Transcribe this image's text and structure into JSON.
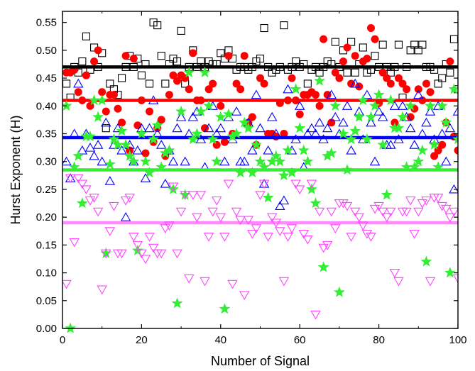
{
  "chart_data": {
    "type": "scatter",
    "title": "",
    "xlabel": "Number of Signal",
    "ylabel": "Hurst Exponent (H)",
    "xlim": [
      0,
      100
    ],
    "ylim": [
      0.0,
      0.57
    ],
    "x_ticks": [
      0,
      20,
      40,
      60,
      80,
      100
    ],
    "x_tick_labels": [
      "0",
      "20",
      "40",
      "60",
      "80",
      "100"
    ],
    "y_ticks": [
      0.0,
      0.05,
      0.1,
      0.15,
      0.2,
      0.25,
      0.3,
      0.35,
      0.4,
      0.45,
      0.5,
      0.55
    ],
    "y_tick_labels": [
      "0.00",
      "0.05",
      "0.10",
      "0.15",
      "0.20",
      "0.25",
      "0.30",
      "0.35",
      "0.40",
      "0.45",
      "0.50",
      "0.55"
    ],
    "grid": false,
    "legend": "none",
    "horizontal_lines": [
      {
        "y": 0.47,
        "color": "#000000"
      },
      {
        "y": 0.41,
        "color": "#ff0000"
      },
      {
        "y": 0.343,
        "color": "#0000ff"
      },
      {
        "y": 0.285,
        "color": "#33ee33"
      },
      {
        "y": 0.19,
        "color": "#ff88ff"
      }
    ],
    "series": [
      {
        "marker": "open-square",
        "color": "#000000",
        "x": [
          1,
          2,
          3,
          4,
          5,
          6,
          7,
          8,
          9,
          10,
          11,
          12,
          13,
          14,
          15,
          16,
          17,
          18,
          19,
          20,
          21,
          22,
          23,
          24,
          25,
          26,
          27,
          28,
          29,
          30,
          31,
          32,
          33,
          34,
          35,
          36,
          37,
          38,
          39,
          40,
          41,
          42,
          43,
          44,
          45,
          46,
          47,
          48,
          49,
          50,
          51,
          52,
          53,
          54,
          55,
          56,
          57,
          58,
          59,
          60,
          61,
          62,
          63,
          64,
          65,
          66,
          67,
          68,
          69,
          70,
          71,
          72,
          73,
          74,
          75,
          76,
          77,
          78,
          79,
          80,
          81,
          82,
          83,
          84,
          85,
          86,
          87,
          88,
          89,
          90,
          91,
          92,
          93,
          94,
          95,
          96,
          97,
          98,
          99,
          100
        ],
        "y": [
          0.44,
          0.415,
          0.47,
          0.46,
          0.48,
          0.525,
          0.465,
          0.505,
          0.47,
          0.495,
          0.36,
          0.44,
          0.43,
          0.42,
          0.45,
          0.47,
          0.49,
          0.47,
          0.485,
          0.455,
          0.475,
          0.44,
          0.55,
          0.545,
          0.49,
          0.44,
          0.475,
          0.485,
          0.48,
          0.535,
          0.44,
          0.47,
          0.5,
          0.47,
          0.48,
          0.47,
          0.48,
          0.475,
          0.475,
          0.495,
          0.485,
          0.5,
          0.485,
          0.465,
          0.47,
          0.47,
          0.465,
          0.47,
          0.48,
          0.485,
          0.54,
          0.47,
          0.46,
          0.465,
          0.47,
          0.545,
          0.465,
          0.47,
          0.48,
          0.47,
          0.475,
          0.44,
          0.465,
          0.47,
          0.46,
          0.47,
          0.48,
          0.475,
          0.515,
          0.47,
          0.5,
          0.46,
          0.515,
          0.46,
          0.475,
          0.505,
          0.46,
          0.465,
          0.49,
          0.47,
          0.51,
          0.47,
          0.46,
          0.47,
          0.51,
          0.415,
          0.47,
          0.5,
          0.51,
          0.5,
          0.51,
          0.47,
          0.47,
          0.465,
          0.44,
          0.45,
          0.475,
          0.46,
          0.52,
          0.43
        ]
      },
      {
        "marker": "filled-circle",
        "color": "#ff0000",
        "x": [
          1,
          2,
          3,
          4,
          5,
          6,
          7,
          8,
          9,
          10,
          11,
          12,
          13,
          14,
          15,
          16,
          17,
          18,
          19,
          20,
          21,
          22,
          23,
          24,
          25,
          26,
          27,
          28,
          29,
          30,
          31,
          32,
          33,
          34,
          35,
          36,
          37,
          38,
          39,
          40,
          41,
          42,
          43,
          44,
          45,
          46,
          47,
          48,
          49,
          50,
          51,
          52,
          53,
          54,
          55,
          56,
          57,
          58,
          59,
          60,
          61,
          62,
          63,
          64,
          65,
          66,
          67,
          68,
          69,
          70,
          71,
          72,
          73,
          74,
          75,
          76,
          77,
          78,
          79,
          80,
          81,
          82,
          83,
          84,
          85,
          86,
          87,
          88,
          89,
          90,
          91,
          92,
          93,
          94,
          95,
          96,
          97,
          98,
          99,
          100
        ],
        "y": [
          0.46,
          0.46,
          0.465,
          0.425,
          0.41,
          0.455,
          0.4,
          0.48,
          0.5,
          0.425,
          0.39,
          0.42,
          0.42,
          0.395,
          0.37,
          0.49,
          0.32,
          0.485,
          0.365,
          0.41,
          0.315,
          0.39,
          0.335,
          0.36,
          0.375,
          0.31,
          0.42,
          0.455,
          0.445,
          0.455,
          0.45,
          0.43,
          0.495,
          0.41,
          0.41,
          0.36,
          0.43,
          0.44,
          0.33,
          0.4,
          0.335,
          0.49,
          0.35,
          0.44,
          0.43,
          0.49,
          0.37,
          0.38,
          0.33,
          0.45,
          0.44,
          0.35,
          0.35,
          0.345,
          0.405,
          0.35,
          0.41,
          0.45,
          0.41,
          0.385,
          0.42,
          0.42,
          0.425,
          0.42,
          0.4,
          0.52,
          0.42,
          0.37,
          0.46,
          0.45,
          0.48,
          0.505,
          0.44,
          0.49,
          0.435,
          0.48,
          0.485,
          0.54,
          0.52,
          0.405,
          0.46,
          0.45,
          0.44,
          0.37,
          0.45,
          0.44,
          0.43,
          0.38,
          0.395,
          0.43,
          0.41,
          0.44,
          0.425,
          0.31,
          0.32,
          0.33,
          0.37,
          0.48,
          0.345,
          0.32
        ]
      },
      {
        "marker": "open-triangle-up",
        "color": "#0000ff",
        "x": [
          1,
          2,
          3,
          4,
          5,
          6,
          7,
          8,
          9,
          10,
          11,
          12,
          13,
          14,
          15,
          16,
          17,
          18,
          19,
          20,
          21,
          22,
          23,
          24,
          25,
          26,
          27,
          28,
          29,
          30,
          31,
          32,
          33,
          34,
          35,
          36,
          37,
          38,
          39,
          40,
          41,
          42,
          43,
          44,
          45,
          46,
          47,
          48,
          49,
          50,
          51,
          52,
          53,
          54,
          55,
          56,
          57,
          58,
          59,
          60,
          61,
          62,
          63,
          64,
          65,
          66,
          67,
          68,
          69,
          70,
          71,
          72,
          73,
          74,
          75,
          76,
          77,
          78,
          79,
          80,
          81,
          82,
          83,
          84,
          85,
          86,
          87,
          88,
          89,
          90,
          91,
          92,
          93,
          94,
          95,
          96,
          97,
          98,
          99,
          100
        ],
        "y": [
          0.3,
          0.27,
          0.35,
          0.44,
          0.32,
          0.35,
          0.325,
          0.31,
          0.33,
          0.3,
          0.37,
          0.265,
          0.33,
          0.36,
          0.32,
          0.2,
          0.33,
          0.3,
          0.32,
          0.36,
          0.27,
          0.36,
          0.41,
          0.35,
          0.33,
          0.26,
          0.32,
          0.3,
          0.36,
          0.38,
          0.3,
          0.35,
          0.38,
          0.39,
          0.34,
          0.29,
          0.36,
          0.4,
          0.35,
          0.36,
          0.3,
          0.38,
          0.34,
          0.39,
          0.3,
          0.3,
          0.37,
          0.32,
          0.42,
          0.36,
          0.26,
          0.32,
          0.38,
          0.35,
          0.22,
          0.23,
          0.43,
          0.32,
          0.34,
          0.4,
          0.29,
          0.35,
          0.36,
          0.35,
          0.37,
          0.34,
          0.36,
          0.42,
          0.38,
          0.35,
          0.37,
          0.4,
          0.32,
          0.44,
          0.39,
          0.34,
          0.42,
          0.37,
          0.3,
          0.39,
          0.38,
          0.33,
          0.33,
          0.4,
          0.34,
          0.4,
          0.38,
          0.36,
          0.33,
          0.42,
          0.35,
          0.37,
          0.39,
          0.34,
          0.4,
          0.35,
          0.3,
          0.36,
          0.25,
          0.39
        ]
      },
      {
        "marker": "filled-star",
        "color": "#33ee33",
        "x": [
          1,
          2,
          3,
          4,
          5,
          6,
          7,
          8,
          9,
          10,
          11,
          12,
          13,
          14,
          15,
          16,
          17,
          18,
          19,
          20,
          21,
          22,
          23,
          24,
          25,
          26,
          27,
          28,
          29,
          30,
          31,
          32,
          33,
          34,
          35,
          36,
          37,
          38,
          39,
          40,
          41,
          42,
          43,
          44,
          45,
          46,
          47,
          48,
          49,
          50,
          51,
          52,
          53,
          54,
          55,
          56,
          57,
          58,
          59,
          60,
          61,
          62,
          63,
          64,
          65,
          66,
          67,
          68,
          69,
          70,
          71,
          72,
          73,
          74,
          75,
          76,
          77,
          78,
          79,
          80,
          81,
          82,
          83,
          84,
          85,
          86,
          87,
          88,
          89,
          90,
          91,
          92,
          93,
          94,
          95,
          96,
          97,
          98,
          99,
          100
        ],
        "y": [
          0.4,
          0.0,
          0.29,
          0.31,
          0.225,
          0.345,
          0.345,
          0.41,
          0.38,
          0.41,
          0.135,
          0.295,
          0.34,
          0.33,
          0.355,
          0.33,
          0.31,
          0.3,
          0.14,
          0.35,
          0.3,
          0.28,
          0.34,
          0.365,
          0.29,
          0.315,
          0.32,
          0.25,
          0.045,
          0.39,
          0.24,
          0.46,
          0.34,
          0.35,
          0.39,
          0.46,
          0.4,
          0.34,
          0.3,
          0.38,
          0.035,
          0.385,
          0.345,
          0.35,
          0.28,
          0.37,
          0.36,
          0.28,
          0.33,
          0.3,
          0.29,
          0.235,
          0.3,
          0.31,
          0.3,
          0.275,
          0.32,
          0.28,
          0.43,
          0.36,
          0.32,
          0.3,
          0.25,
          0.225,
          0.445,
          0.11,
          0.31,
          0.315,
          0.4,
          0.065,
          0.35,
          0.285,
          0.34,
          0.355,
          0.38,
          0.41,
          0.34,
          0.38,
          0.4,
          0.42,
          0.33,
          0.24,
          0.41,
          0.36,
          0.36,
          0.38,
          0.29,
          0.4,
          0.29,
          0.3,
          0.32,
          0.12,
          0.4,
          0.33,
          0.29,
          0.4,
          0.37,
          0.1,
          0.43,
          0.34
        ]
      },
      {
        "marker": "open-triangle-down",
        "color": "#ff44ff",
        "x": [
          1,
          2,
          3,
          4,
          5,
          6,
          7,
          8,
          9,
          10,
          11,
          12,
          13,
          14,
          15,
          16,
          17,
          18,
          19,
          20,
          21,
          22,
          23,
          24,
          25,
          26,
          27,
          28,
          29,
          30,
          31,
          32,
          33,
          34,
          35,
          36,
          37,
          38,
          39,
          40,
          41,
          42,
          43,
          44,
          45,
          46,
          47,
          48,
          49,
          50,
          51,
          52,
          53,
          54,
          55,
          56,
          57,
          58,
          59,
          60,
          61,
          62,
          63,
          64,
          65,
          66,
          67,
          68,
          69,
          70,
          71,
          72,
          73,
          74,
          75,
          76,
          77,
          78,
          79,
          80,
          81,
          82,
          83,
          84,
          85,
          86,
          87,
          88,
          89,
          90,
          91,
          92,
          93,
          94,
          95,
          96,
          97,
          98,
          99,
          100
        ],
        "y": [
          0.08,
          0.27,
          0.155,
          0.27,
          0.26,
          0.25,
          0.23,
          0.235,
          0.21,
          0.07,
          0.135,
          0.175,
          0.22,
          0.135,
          0.135,
          0.23,
          0.235,
          0.165,
          0.15,
          0.135,
          0.125,
          0.165,
          0.145,
          0.135,
          0.135,
          0.18,
          0.185,
          0.255,
          0.135,
          0.21,
          0.24,
          0.09,
          0.24,
          0.2,
          0.24,
          0.085,
          0.165,
          0.21,
          0.23,
          0.2,
          0.165,
          0.26,
          0.08,
          0.21,
          0.195,
          0.06,
          0.195,
          0.17,
          0.18,
          0.24,
          0.26,
          0.165,
          0.2,
          0.19,
          0.175,
          0.085,
          0.165,
          0.18,
          0.26,
          0.25,
          0.17,
          0.16,
          0.26,
          0.025,
          0.21,
          0.145,
          0.15,
          0.21,
          0.18,
          0.225,
          0.225,
          0.22,
          0.165,
          0.21,
          0.2,
          0.185,
          0.17,
          0.165,
          0.215,
          0.22,
          0.21,
          0.2,
          0.21,
          0.1,
          0.085,
          0.21,
          0.21,
          0.23,
          0.17,
          0.21,
          0.225,
          0.23,
          0.085,
          0.235,
          0.235,
          0.22,
          0.215,
          0.2,
          0.21,
          0.09
        ]
      }
    ]
  }
}
